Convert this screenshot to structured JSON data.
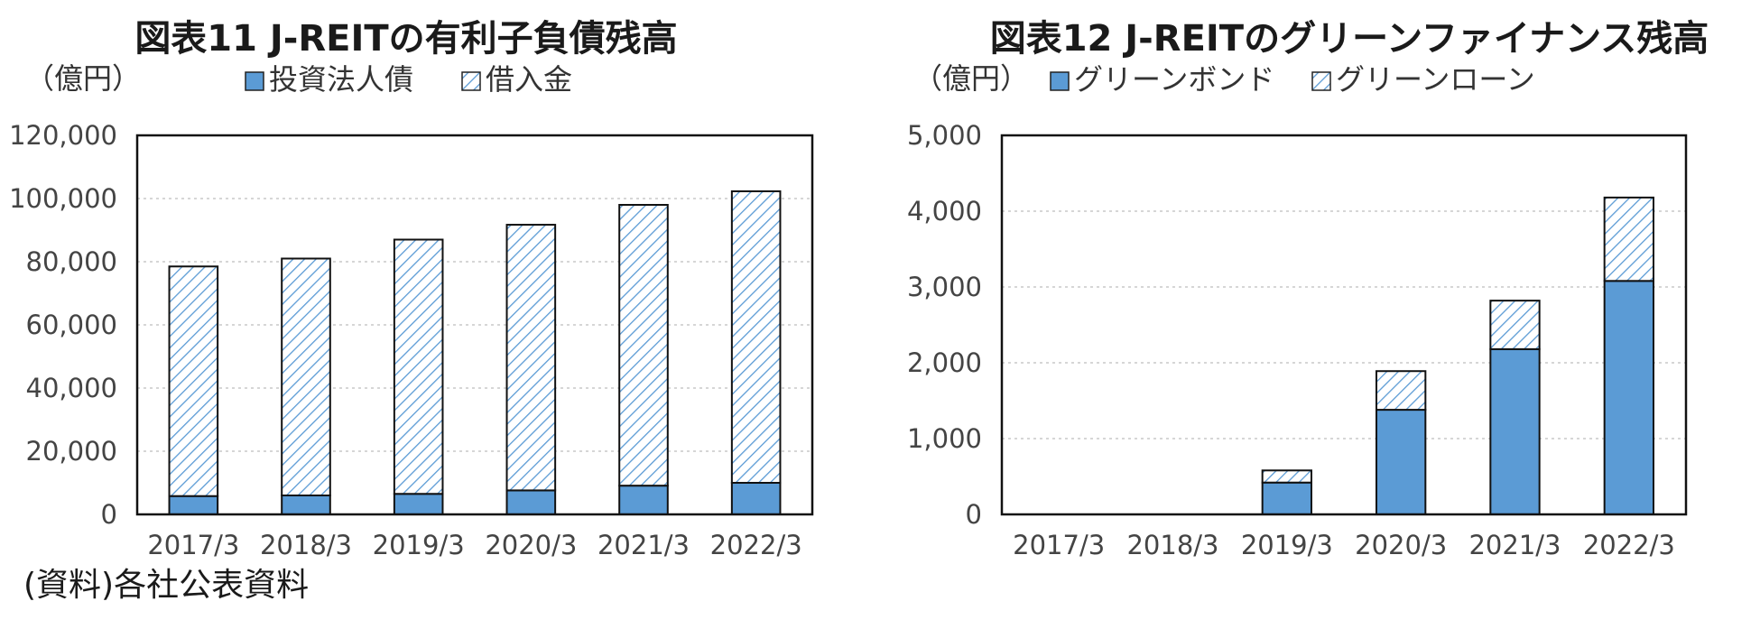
{
  "source_note": "(資料)各社公表資料",
  "chart_data": [
    {
      "type": "bar",
      "stacked": true,
      "title": "図表11  J-REITの有利子負債残高",
      "unit_label": "（億円）",
      "categories": [
        "2017/3",
        "2018/3",
        "2019/3",
        "2020/3",
        "2021/3",
        "2022/3"
      ],
      "series": [
        {
          "name": "投資法人債",
          "pattern": "solid",
          "color": "#5b9bd5",
          "values": [
            5800,
            6000,
            6500,
            7600,
            9100,
            10000
          ]
        },
        {
          "name": "借入金",
          "pattern": "hatch",
          "color": "#5b9bd5",
          "values": [
            72700,
            75000,
            80500,
            84100,
            88900,
            92300
          ]
        }
      ],
      "ylim": [
        0,
        120000
      ],
      "yticks": [
        0,
        20000,
        40000,
        60000,
        80000,
        100000,
        120000
      ],
      "ytick_labels": [
        "0",
        "20,000",
        "40,000",
        "60,000",
        "80,000",
        "100,000",
        "120,000"
      ],
      "grid": true,
      "legend_position": "top"
    },
    {
      "type": "bar",
      "stacked": true,
      "title": "図表12  J-REITのグリーンファイナンス残高",
      "unit_label": "（億円）",
      "categories": [
        "2017/3",
        "2018/3",
        "2019/3",
        "2020/3",
        "2021/3",
        "2022/3"
      ],
      "series": [
        {
          "name": "グリーンボンド",
          "pattern": "solid",
          "color": "#5b9bd5",
          "values": [
            0,
            0,
            420,
            1380,
            2180,
            3080
          ]
        },
        {
          "name": "グリーンローン",
          "pattern": "hatch",
          "color": "#5b9bd5",
          "values": [
            0,
            0,
            160,
            510,
            640,
            1100
          ]
        }
      ],
      "ylim": [
        0,
        5000
      ],
      "yticks": [
        0,
        1000,
        2000,
        3000,
        4000,
        5000
      ],
      "ytick_labels": [
        "0",
        "1,000",
        "2,000",
        "3,000",
        "4,000",
        "5,000"
      ],
      "grid": true,
      "legend_position": "top"
    }
  ]
}
